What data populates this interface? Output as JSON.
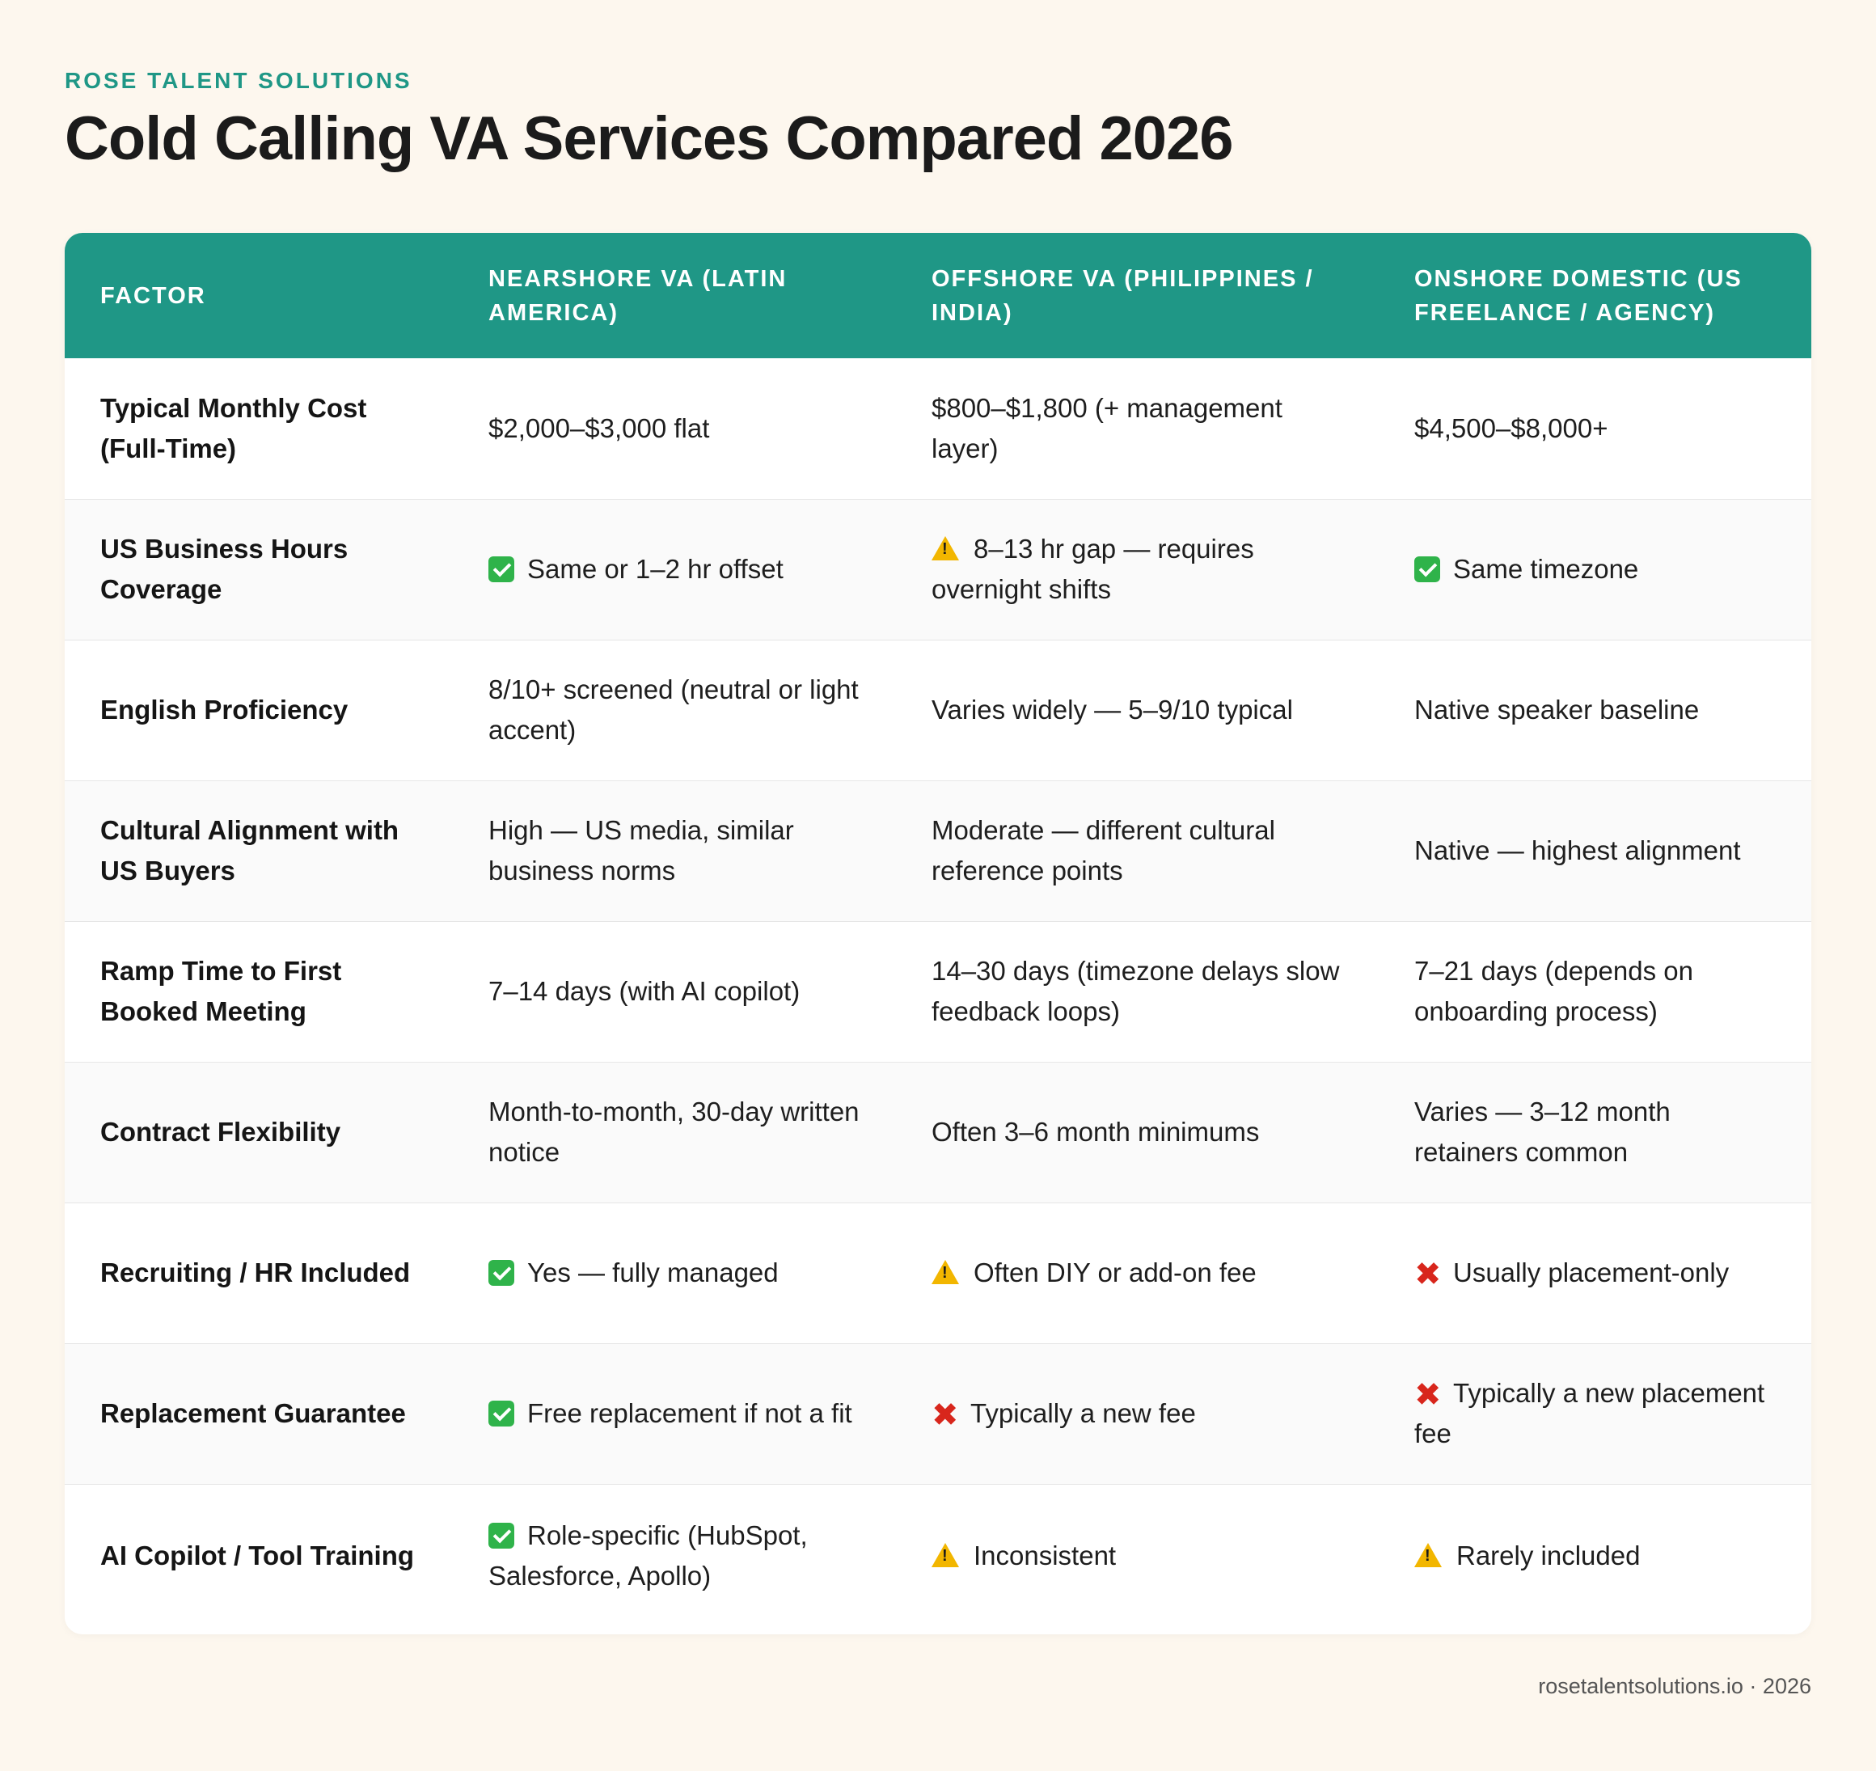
{
  "brand": "ROSE TALENT SOLUTIONS",
  "title": "Cold Calling VA Services Compared 2026",
  "table": {
    "headers": [
      "FACTOR",
      "NEARSHORE VA (LATIN AMERICA)",
      "OFFSHORE VA (PHILIPPINES / INDIA)",
      "ONSHORE DOMESTIC (US FREELANCE / AGENCY)"
    ],
    "rows": [
      {
        "factor": "Typical Monthly Cost (Full-Time)",
        "cells": [
          {
            "icon": "",
            "text": "$2,000–$3,000 flat"
          },
          {
            "icon": "",
            "text": "$800–$1,800 (+ management layer)"
          },
          {
            "icon": "",
            "text": "$4,500–$8,000+"
          }
        ]
      },
      {
        "factor": "US Business Hours Coverage",
        "cells": [
          {
            "icon": "check-icon",
            "text": "Same or 1–2 hr offset"
          },
          {
            "icon": "warning-icon",
            "text": "8–13 hr gap — requires overnight shifts"
          },
          {
            "icon": "check-icon",
            "text": "Same timezone"
          }
        ]
      },
      {
        "factor": "English Proficiency",
        "cells": [
          {
            "icon": "",
            "text": "8/10+ screened (neutral or light accent)"
          },
          {
            "icon": "",
            "text": "Varies widely — 5–9/10 typical"
          },
          {
            "icon": "",
            "text": "Native speaker baseline"
          }
        ]
      },
      {
        "factor": "Cultural Alignment with US Buyers",
        "cells": [
          {
            "icon": "",
            "text": "High — US media, similar business norms"
          },
          {
            "icon": "",
            "text": "Moderate — different cultural reference points"
          },
          {
            "icon": "",
            "text": "Native — highest alignment"
          }
        ]
      },
      {
        "factor": "Ramp Time to First Booked Meeting",
        "cells": [
          {
            "icon": "",
            "text": "7–14 days (with AI copilot)"
          },
          {
            "icon": "",
            "text": "14–30 days (timezone delays slow feedback loops)"
          },
          {
            "icon": "",
            "text": "7–21 days (depends on onboarding process)"
          }
        ]
      },
      {
        "factor": "Contract Flexibility",
        "cells": [
          {
            "icon": "",
            "text": "Month-to-month, 30-day written notice"
          },
          {
            "icon": "",
            "text": "Often 3–6 month minimums"
          },
          {
            "icon": "",
            "text": "Varies — 3–12 month retainers common"
          }
        ]
      },
      {
        "factor": "Recruiting / HR Included",
        "cells": [
          {
            "icon": "check-icon",
            "text": "Yes — fully managed"
          },
          {
            "icon": "warning-icon",
            "text": "Often DIY or add-on fee"
          },
          {
            "icon": "cross-icon",
            "text": "Usually placement-only"
          }
        ]
      },
      {
        "factor": "Replacement Guarantee",
        "cells": [
          {
            "icon": "check-icon",
            "text": "Free replacement if not a fit"
          },
          {
            "icon": "cross-icon",
            "text": "Typically a new fee"
          },
          {
            "icon": "cross-icon",
            "text": "Typically a new placement fee"
          }
        ]
      },
      {
        "factor": "AI Copilot / Tool Training",
        "cells": [
          {
            "icon": "check-icon",
            "text": "Role-specific (HubSpot, Salesforce, Apollo)"
          },
          {
            "icon": "warning-icon",
            "text": "Inconsistent"
          },
          {
            "icon": "warning-icon",
            "text": "Rarely included"
          }
        ]
      }
    ]
  },
  "footer": "rosetalentsolutions.io · 2026",
  "colors": {
    "accent": "#1f9786",
    "background": "#fdf7ee",
    "check": "#2fb34a",
    "warning": "#f2b600",
    "cross": "#d8261c"
  }
}
